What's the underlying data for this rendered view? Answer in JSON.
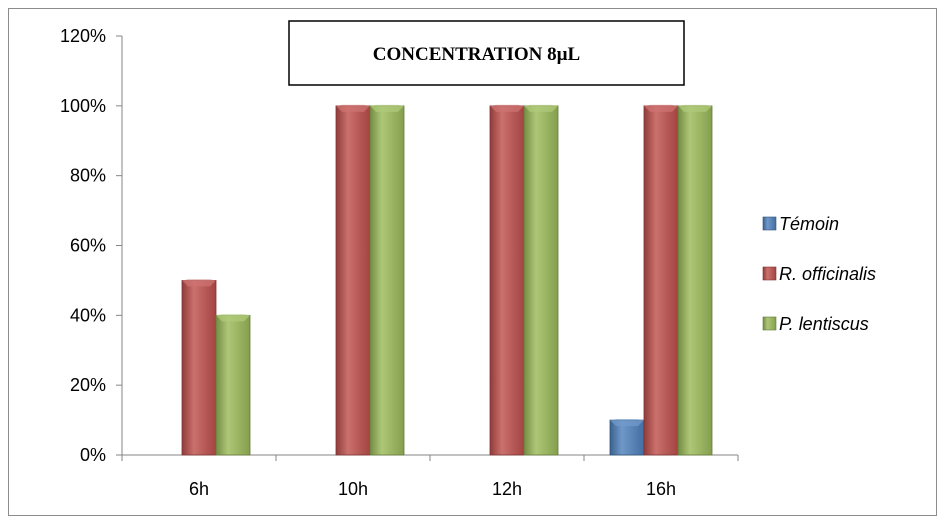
{
  "chart_data": {
    "type": "bar",
    "title": "CONCENTRATION 8µL",
    "categories": [
      "6h",
      "10h",
      "12h",
      "16h"
    ],
    "series": [
      {
        "name": "Témoin",
        "values": [
          0,
          0,
          0,
          10
        ],
        "color": "#4f81bd"
      },
      {
        "name": "R. officinalis",
        "values": [
          50,
          100,
          100,
          100
        ],
        "color": "#c0504d"
      },
      {
        "name": "P. lentiscus",
        "values": [
          40,
          100,
          100,
          100
        ],
        "color": "#9bbb59"
      }
    ],
    "ylim": [
      0,
      120
    ],
    "yticks": [
      "0%",
      "20%",
      "40%",
      "60%",
      "80%",
      "100%",
      "120%"
    ],
    "ytick_values": [
      0,
      20,
      40,
      60,
      80,
      100,
      120
    ],
    "grid": false,
    "legend_position": "right"
  }
}
